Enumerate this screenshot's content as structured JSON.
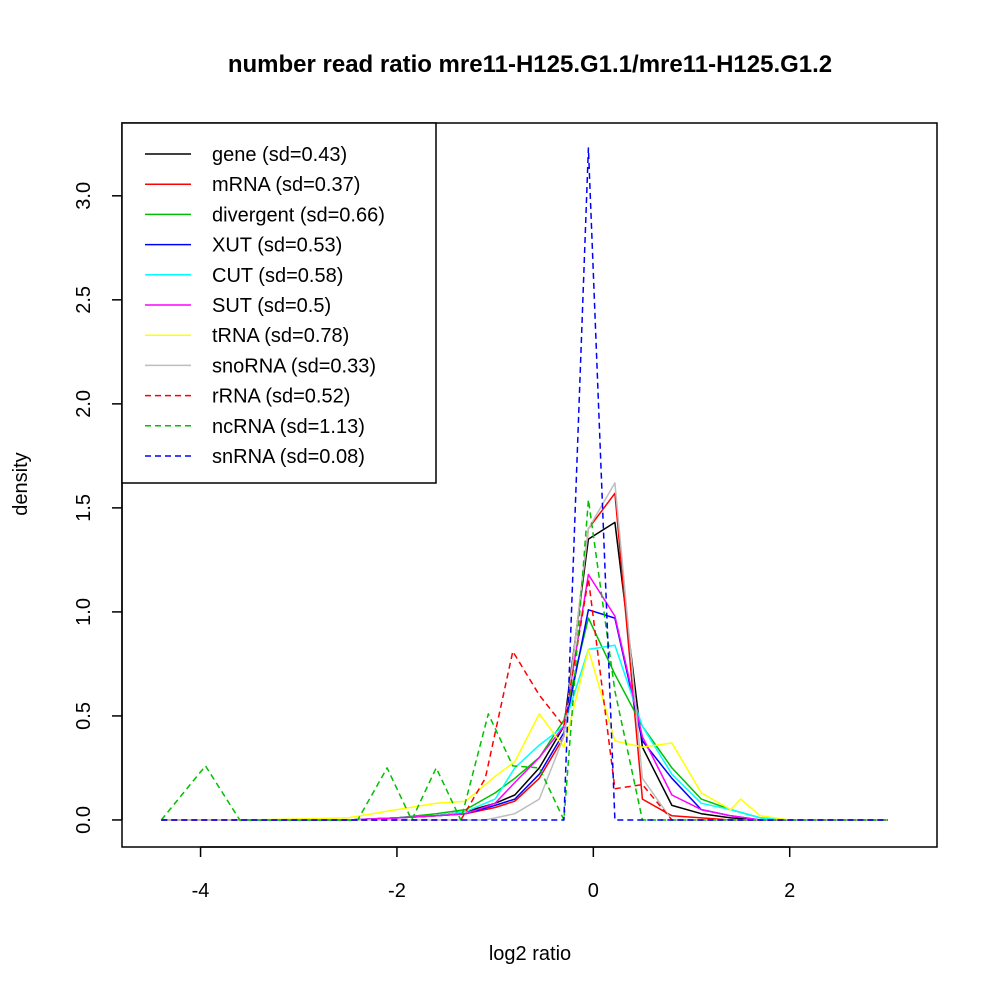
{
  "chart_data": {
    "type": "line",
    "title": "number read ratio mre11-H125.G1.1/mre11-H125.G1.2",
    "xlabel": "log2 ratio",
    "ylabel": "density",
    "xlim": [
      -4.8,
      3.5
    ],
    "ylim": [
      -0.13,
      3.35
    ],
    "xticks": [
      -4,
      -2,
      0,
      2
    ],
    "xtick_labels": [
      "-4",
      "-2",
      "0",
      "2"
    ],
    "yticks": [
      0.0,
      0.5,
      1.0,
      1.5,
      2.0,
      2.5,
      3.0
    ],
    "ytick_labels": [
      "0.0",
      "0.5",
      "1.0",
      "1.5",
      "2.0",
      "2.5",
      "3.0"
    ],
    "legend_position": "top-left",
    "series": [
      {
        "name": "gene (sd=0.43)",
        "color": "#000000",
        "dash": "solid",
        "x": [
          -4.4,
          -3.5,
          -2.5,
          -2.0,
          -1.6,
          -1.3,
          -1.0,
          -0.8,
          -0.55,
          -0.3,
          -0.05,
          0.22,
          0.5,
          0.8,
          1.1,
          1.4,
          1.7,
          2.0,
          2.5,
          3.0
        ],
        "y": [
          0.0,
          0.0,
          0.0,
          0.01,
          0.02,
          0.04,
          0.08,
          0.12,
          0.25,
          0.45,
          1.35,
          1.43,
          0.35,
          0.07,
          0.03,
          0.01,
          0.0,
          0.0,
          0.0,
          0.0
        ]
      },
      {
        "name": "mRNA (sd=0.37)",
        "color": "#ff0000",
        "dash": "solid",
        "x": [
          -4.4,
          -3.5,
          -2.5,
          -2.0,
          -1.6,
          -1.3,
          -1.0,
          -0.8,
          -0.55,
          -0.3,
          -0.05,
          0.22,
          0.5,
          0.8,
          1.1,
          1.4,
          1.7,
          2.0,
          2.5,
          3.0
        ],
        "y": [
          0.0,
          0.0,
          0.0,
          0.01,
          0.02,
          0.03,
          0.06,
          0.09,
          0.2,
          0.4,
          1.4,
          1.57,
          0.1,
          0.02,
          0.01,
          0.0,
          0.0,
          0.0,
          0.0,
          0.0
        ]
      },
      {
        "name": "divergent (sd=0.66)",
        "color": "#00c000",
        "dash": "solid",
        "x": [
          -4.4,
          -3.5,
          -2.5,
          -2.0,
          -1.6,
          -1.3,
          -1.0,
          -0.8,
          -0.55,
          -0.3,
          -0.05,
          0.22,
          0.5,
          0.8,
          1.1,
          1.4,
          1.7,
          2.0,
          2.5,
          3.0
        ],
        "y": [
          0.0,
          0.0,
          0.0,
          0.01,
          0.03,
          0.05,
          0.13,
          0.2,
          0.3,
          0.48,
          0.97,
          0.7,
          0.45,
          0.25,
          0.1,
          0.05,
          0.01,
          0.0,
          0.0,
          0.0
        ]
      },
      {
        "name": "XUT (sd=0.53)",
        "color": "#0000ff",
        "dash": "solid",
        "x": [
          -4.4,
          -3.5,
          -2.5,
          -2.0,
          -1.6,
          -1.3,
          -1.0,
          -0.8,
          -0.55,
          -0.3,
          -0.05,
          0.22,
          0.5,
          0.8,
          1.1,
          1.4,
          1.7,
          2.0,
          2.5,
          3.0
        ],
        "y": [
          0.0,
          0.0,
          0.0,
          0.01,
          0.02,
          0.03,
          0.07,
          0.1,
          0.22,
          0.42,
          1.01,
          0.97,
          0.38,
          0.2,
          0.05,
          0.02,
          0.0,
          0.0,
          0.0,
          0.0
        ]
      },
      {
        "name": "CUT (sd=0.58)",
        "color": "#00ffff",
        "dash": "solid",
        "x": [
          -4.4,
          -3.5,
          -2.5,
          -2.0,
          -1.6,
          -1.3,
          -1.0,
          -0.8,
          -0.55,
          -0.3,
          -0.05,
          0.22,
          0.5,
          0.8,
          1.1,
          1.4,
          1.7,
          2.0,
          2.5,
          3.0
        ],
        "y": [
          0.0,
          0.0,
          0.0,
          0.01,
          0.02,
          0.04,
          0.1,
          0.25,
          0.36,
          0.45,
          0.82,
          0.84,
          0.45,
          0.22,
          0.08,
          0.05,
          0.01,
          0.0,
          0.0,
          0.0
        ]
      },
      {
        "name": "SUT (sd=0.5)",
        "color": "#ff00ff",
        "dash": "solid",
        "x": [
          -4.4,
          -3.5,
          -2.5,
          -2.0,
          -1.6,
          -1.3,
          -1.0,
          -0.8,
          -0.55,
          -0.3,
          -0.05,
          0.22,
          0.5,
          0.8,
          1.1,
          1.4,
          1.7,
          2.0,
          2.5,
          3.0
        ],
        "y": [
          0.0,
          0.0,
          0.0,
          0.01,
          0.02,
          0.03,
          0.08,
          0.18,
          0.3,
          0.45,
          1.18,
          0.98,
          0.4,
          0.12,
          0.05,
          0.02,
          0.0,
          0.0,
          0.0,
          0.0
        ]
      },
      {
        "name": "tRNA (sd=0.78)",
        "color": "#ffff00",
        "dash": "solid",
        "x": [
          -4.4,
          -3.5,
          -2.5,
          -2.0,
          -1.6,
          -1.3,
          -1.0,
          -0.8,
          -0.55,
          -0.3,
          -0.05,
          0.22,
          0.5,
          0.8,
          1.1,
          1.4,
          1.5,
          1.7,
          2.0,
          2.5,
          3.0
        ],
        "y": [
          0.0,
          0.0,
          0.01,
          0.05,
          0.08,
          0.09,
          0.21,
          0.28,
          0.51,
          0.35,
          0.82,
          0.38,
          0.35,
          0.37,
          0.13,
          0.05,
          0.1,
          0.02,
          0.0,
          0.0,
          0.0
        ]
      },
      {
        "name": "snoRNA (sd=0.33)",
        "color": "#bebebe",
        "dash": "solid",
        "x": [
          -4.4,
          -3.0,
          -1.1,
          -0.8,
          -0.55,
          -0.3,
          -0.05,
          0.22,
          0.5,
          0.8,
          1.1,
          1.5,
          2.0,
          3.0
        ],
        "y": [
          0.0,
          0.0,
          0.0,
          0.03,
          0.1,
          0.4,
          1.4,
          1.62,
          0.2,
          0.0,
          0.0,
          0.0,
          0.0,
          0.0
        ]
      },
      {
        "name": "rRNA (sd=0.52)",
        "color": "#ff0000",
        "dash": "dashed",
        "x": [
          -4.4,
          -1.35,
          -1.1,
          -0.82,
          -0.55,
          -0.3,
          -0.05,
          0.22,
          0.5,
          0.8,
          1.1,
          3.0
        ],
        "y": [
          0.0,
          0.0,
          0.2,
          0.81,
          0.6,
          0.45,
          1.16,
          0.15,
          0.17,
          0.0,
          0.0,
          0.0
        ]
      },
      {
        "name": "ncRNA (sd=1.13)",
        "color": "#00c000",
        "dash": "dashed",
        "x": [
          -4.4,
          -3.95,
          -3.6,
          -2.4,
          -2.1,
          -1.85,
          -1.6,
          -1.35,
          -1.07,
          -0.82,
          -0.55,
          -0.3,
          -0.05,
          0.22,
          0.5,
          0.8,
          3.0
        ],
        "y": [
          0.0,
          0.26,
          0.0,
          0.0,
          0.25,
          0.0,
          0.25,
          0.0,
          0.51,
          0.26,
          0.25,
          0.0,
          1.54,
          0.62,
          0.0,
          0.0,
          0.0
        ]
      },
      {
        "name": "snRNA (sd=0.08)",
        "color": "#0000ff",
        "dash": "dashed",
        "x": [
          -4.4,
          -0.55,
          -0.3,
          -0.05,
          0.22,
          0.5,
          3.0
        ],
        "y": [
          0.0,
          0.0,
          0.0,
          3.23,
          0.0,
          0.0,
          0.0
        ]
      }
    ]
  }
}
